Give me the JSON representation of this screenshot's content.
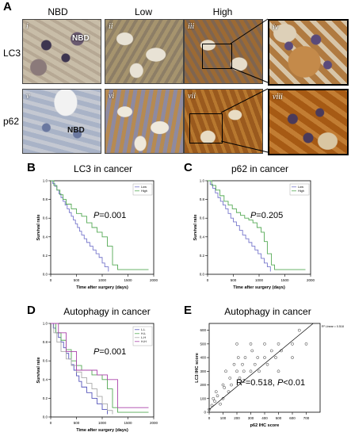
{
  "panelA": {
    "letter": "A",
    "columns": [
      "NBD",
      "Low",
      "High"
    ],
    "rows": [
      "LC3",
      "p62"
    ],
    "tiles_top": [
      "i",
      "ii",
      "iii",
      "iv"
    ],
    "tiles_bottom": [
      "v",
      "vi",
      "vii",
      "viii"
    ],
    "nbd_label": "NBD"
  },
  "colors": {
    "low_line": "#7777cc",
    "high_line": "#55aa55",
    "stain_brown": "#a0621e",
    "tissue_blue": "#9ba6c0"
  },
  "chart_data": [
    {
      "type": "line",
      "letter": "B",
      "title": "LC3 in cancer",
      "xlabel": "Time after surgery (days)",
      "ylabel": "Survival rate",
      "annotation_p": "P",
      "annotation_value": "=0.001",
      "x_ticks": [
        "0",
        "500",
        "1000",
        "1500",
        "2000"
      ],
      "y_ticks": [
        "0.0",
        "0.2",
        "0.4",
        "0.6",
        "0.8",
        "1.0"
      ],
      "xlim": [
        0,
        2000
      ],
      "ylim": [
        0,
        1
      ],
      "legend": [
        "Low",
        "High"
      ],
      "series": [
        {
          "name": "Low",
          "x": [
            0,
            40,
            80,
            120,
            160,
            200,
            240,
            280,
            320,
            360,
            400,
            440,
            480,
            520,
            560,
            600,
            650,
            700,
            760,
            820,
            880,
            940,
            1000,
            1050,
            1120
          ],
          "y": [
            1.0,
            0.97,
            0.94,
            0.9,
            0.86,
            0.82,
            0.78,
            0.74,
            0.7,
            0.66,
            0.62,
            0.58,
            0.54,
            0.5,
            0.46,
            0.42,
            0.38,
            0.34,
            0.3,
            0.26,
            0.22,
            0.18,
            0.12,
            0.08,
            0.03
          ]
        },
        {
          "name": "High",
          "x": [
            0,
            60,
            120,
            180,
            240,
            300,
            400,
            500,
            600,
            700,
            800,
            900,
            1000,
            1100,
            1200,
            1300,
            1400,
            1900
          ],
          "y": [
            1.0,
            0.95,
            0.9,
            0.85,
            0.8,
            0.75,
            0.7,
            0.65,
            0.62,
            0.55,
            0.5,
            0.45,
            0.4,
            0.3,
            0.1,
            0.05,
            0.05,
            0.05
          ]
        }
      ]
    },
    {
      "type": "line",
      "letter": "C",
      "title": "p62 in cancer",
      "xlabel": "Time after surgery (days)",
      "ylabel": "Survival rate",
      "annotation_p": "P",
      "annotation_value": "=0.205",
      "x_ticks": [
        "0",
        "500",
        "1000",
        "1500",
        "2000"
      ],
      "y_ticks": [
        "0.0",
        "0.2",
        "0.4",
        "0.6",
        "0.8",
        "1.0"
      ],
      "xlim": [
        0,
        2000
      ],
      "ylim": [
        0,
        1
      ],
      "legend": [
        "Low",
        "High"
      ],
      "series": [
        {
          "name": "Low",
          "x": [
            0,
            50,
            100,
            150,
            200,
            250,
            300,
            350,
            400,
            450,
            500,
            560,
            620,
            680,
            740,
            800,
            860,
            920,
            980,
            1040,
            1100,
            1160,
            1220
          ],
          "y": [
            1.0,
            0.96,
            0.92,
            0.87,
            0.82,
            0.78,
            0.74,
            0.7,
            0.65,
            0.6,
            0.56,
            0.52,
            0.47,
            0.42,
            0.38,
            0.34,
            0.3,
            0.26,
            0.22,
            0.17,
            0.12,
            0.08,
            0.03
          ]
        },
        {
          "name": "High",
          "x": [
            0,
            80,
            160,
            240,
            320,
            400,
            480,
            560,
            640,
            720,
            800,
            880,
            960,
            1040,
            1100,
            1160,
            1240,
            1300,
            1900
          ],
          "y": [
            1.0,
            0.95,
            0.9,
            0.84,
            0.78,
            0.74,
            0.7,
            0.66,
            0.63,
            0.6,
            0.58,
            0.55,
            0.5,
            0.45,
            0.35,
            0.22,
            0.1,
            0.05,
            0.05
          ]
        }
      ]
    },
    {
      "type": "line",
      "letter": "D",
      "title": "Autophagy in cancer",
      "xlabel": "Time after surgery (days)",
      "ylabel": "Survival rate",
      "annotation_p": "P",
      "annotation_value": "=0.001",
      "x_ticks": [
        "0",
        "500",
        "1000",
        "1500",
        "2000"
      ],
      "y_ticks": [
        "0.0",
        "0.2",
        "0.4",
        "0.6",
        "0.8",
        "1.0"
      ],
      "xlim": [
        0,
        2000
      ],
      "ylim": [
        0,
        1
      ],
      "legend": [
        "L-L",
        "H-L",
        "L-H",
        "H-H"
      ],
      "series": [
        {
          "name": "L-L",
          "x": [
            0,
            50,
            100,
            150,
            200,
            250,
            300,
            350,
            400,
            450,
            500,
            550,
            600,
            700,
            800,
            900,
            1000,
            1100
          ],
          "y": [
            1.0,
            0.95,
            0.9,
            0.85,
            0.8,
            0.74,
            0.68,
            0.62,
            0.56,
            0.5,
            0.44,
            0.38,
            0.32,
            0.26,
            0.2,
            0.14,
            0.08,
            0.03
          ]
        },
        {
          "name": "H-L",
          "x": [
            0,
            100,
            200,
            300,
            400,
            500,
            600,
            800,
            1000,
            1100,
            1200,
            1300,
            1900
          ],
          "y": [
            1.0,
            0.9,
            0.82,
            0.72,
            0.6,
            0.55,
            0.5,
            0.45,
            0.4,
            0.3,
            0.1,
            0.05,
            0.05
          ]
        },
        {
          "name": "L-H",
          "x": [
            0,
            60,
            120,
            200,
            300,
            400,
            500,
            600,
            700,
            800,
            900,
            1000,
            1100,
            1200
          ],
          "y": [
            1.0,
            0.9,
            0.8,
            0.7,
            0.62,
            0.55,
            0.48,
            0.42,
            0.36,
            0.3,
            0.22,
            0.14,
            0.07,
            0.03
          ]
        },
        {
          "name": "H-H",
          "x": [
            0,
            150,
            300,
            500,
            700,
            900,
            1100,
            1300,
            1900
          ],
          "y": [
            1.0,
            0.9,
            0.7,
            0.5,
            0.5,
            0.45,
            0.4,
            0.1,
            0.1
          ]
        }
      ],
      "series_colors": [
        "#5555bb",
        "#55aa55",
        "#aaaaaa",
        "#aa44aa"
      ]
    },
    {
      "type": "scatter",
      "letter": "E",
      "title": "Autophagy in cancer",
      "xlabel": "p62 IHC score",
      "ylabel": "LC3 IHC score",
      "annotation_r": "R",
      "annotation_sup": "2",
      "annotation_rest": "=0.518, ",
      "annotation_p": "P",
      "annotation_ptext": "<0.01",
      "legend_text": "R² Linear = 0.518",
      "x_ticks": [
        "0",
        "100",
        "200",
        "300",
        "400",
        "500",
        "600",
        "700"
      ],
      "y_ticks": [
        "0",
        "100",
        "200",
        "300",
        "400",
        "500",
        "600"
      ],
      "xlim": [
        0,
        800
      ],
      "ylim": [
        0,
        650
      ],
      "points": {
        "x": [
          0,
          20,
          30,
          40,
          50,
          60,
          80,
          100,
          100,
          110,
          120,
          140,
          150,
          160,
          180,
          200,
          200,
          210,
          220,
          240,
          250,
          260,
          300,
          300,
          310,
          330,
          350,
          360,
          400,
          400,
          420,
          450,
          480,
          500,
          500,
          520,
          600,
          650,
          600,
          700
        ],
        "y": [
          20,
          50,
          100,
          80,
          150,
          120,
          60,
          100,
          200,
          180,
          300,
          150,
          250,
          200,
          350,
          300,
          500,
          400,
          250,
          350,
          300,
          400,
          300,
          500,
          450,
          350,
          400,
          300,
          400,
          500,
          350,
          450,
          400,
          500,
          300,
          450,
          500,
          600,
          400,
          500
        ]
      },
      "fit_line": {
        "x": [
          0,
          750
        ],
        "y": [
          20,
          650
        ]
      }
    }
  ]
}
